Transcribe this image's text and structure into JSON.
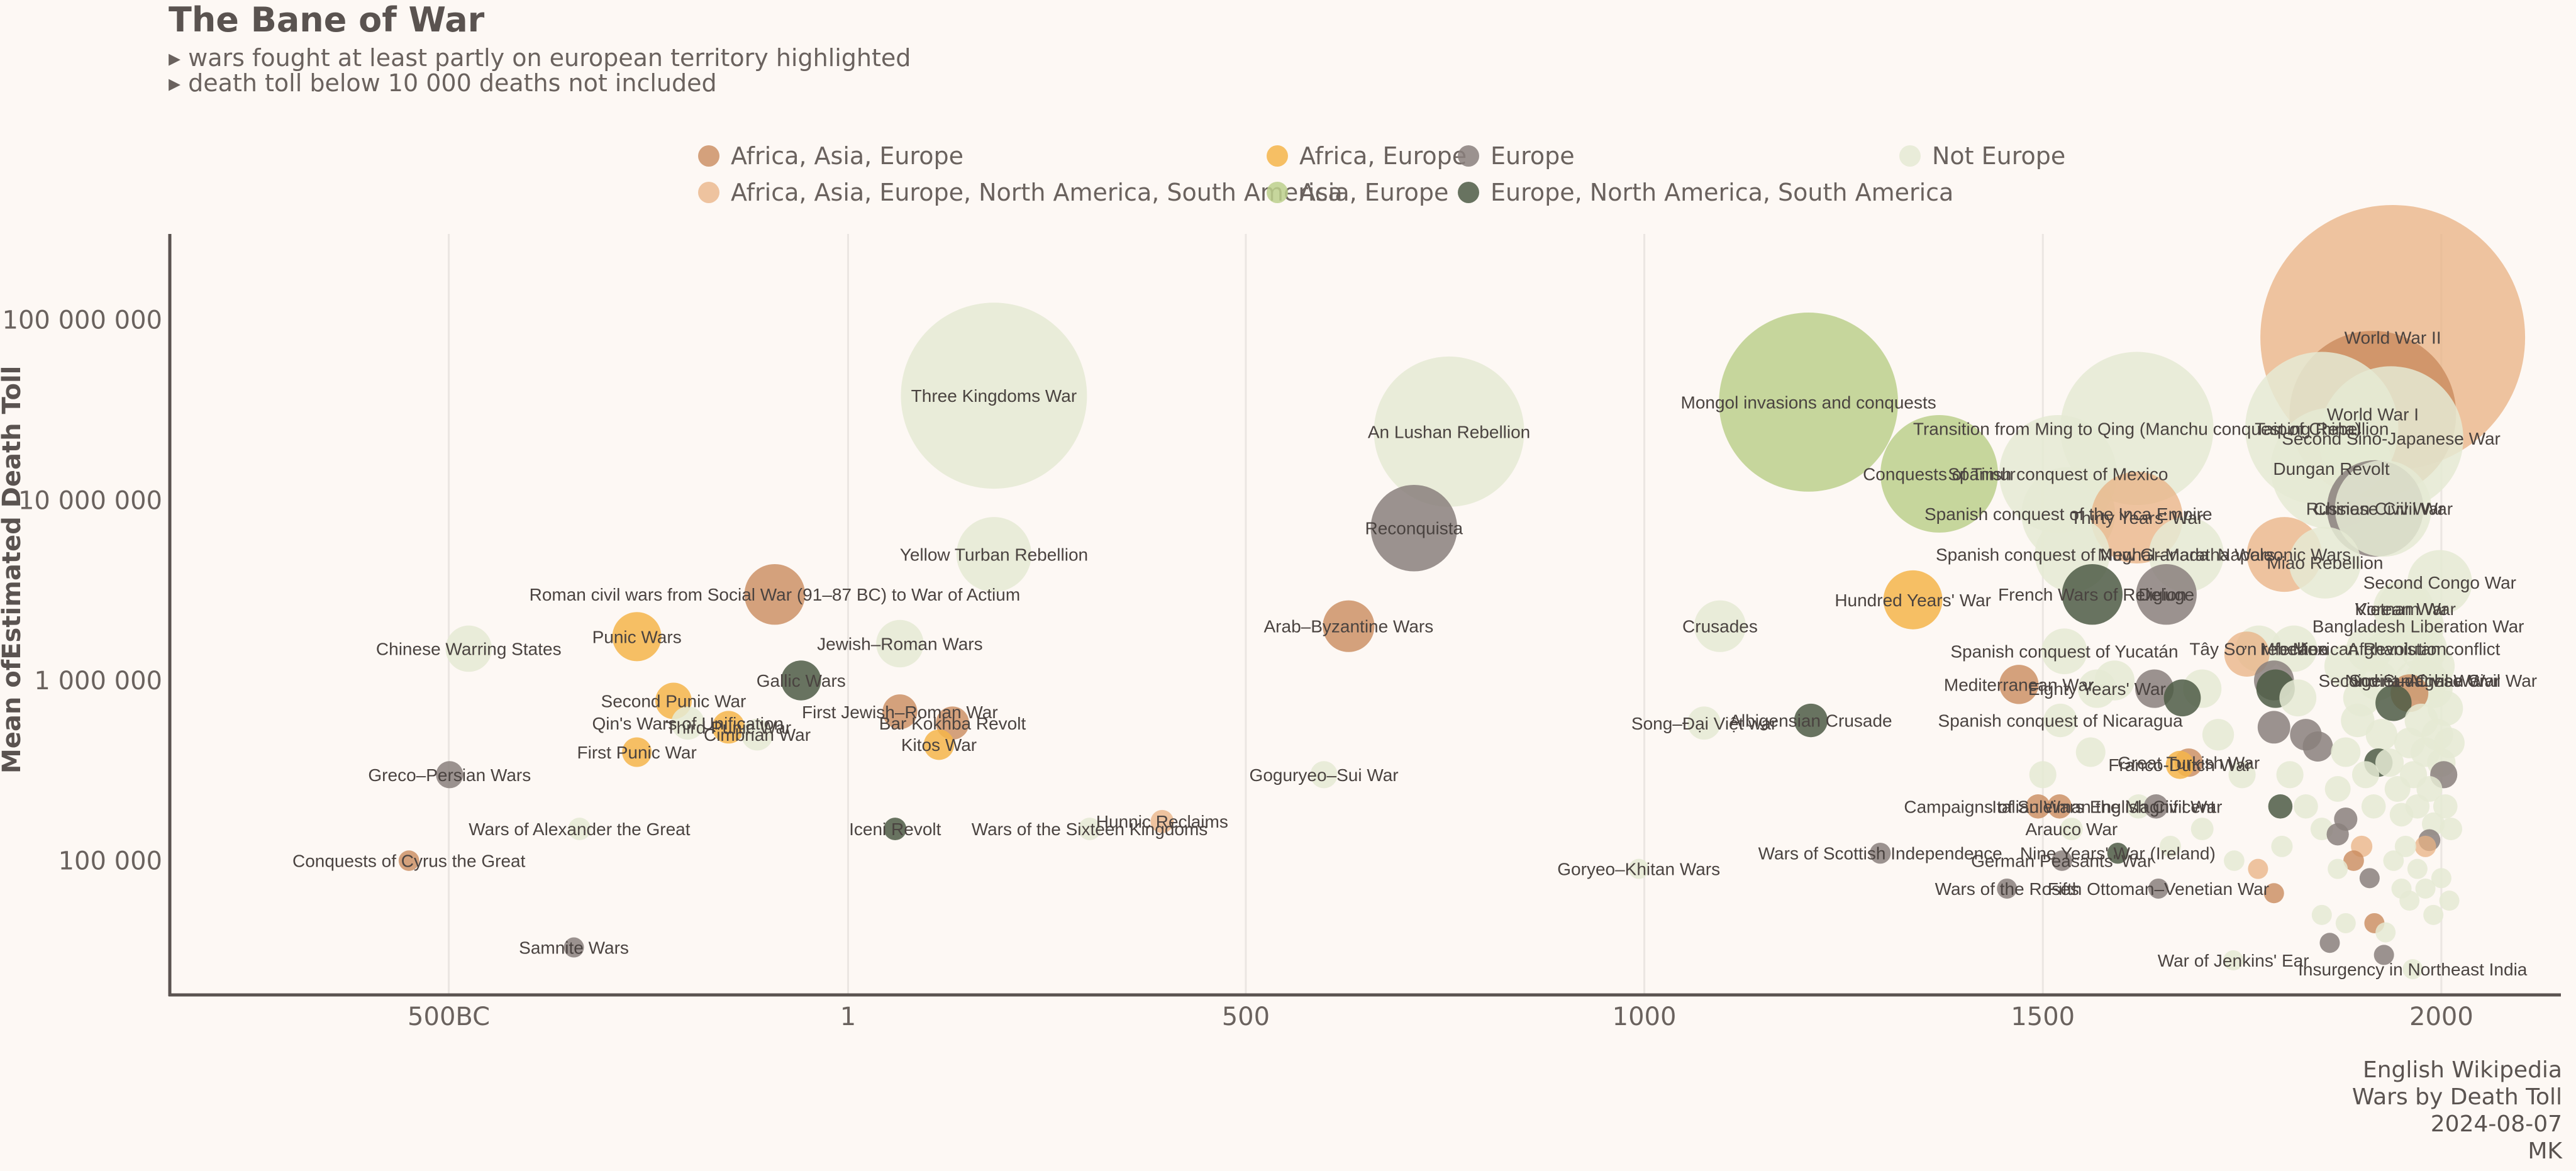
{
  "chart_data": {
    "type": "scatter",
    "title": "The Bane of War",
    "subtitle": [
      "▸ wars fought at least partly on european territory highlighted",
      "▸ death toll below 10 000 deaths not included"
    ],
    "ylabel": "Mean ofEstimated Death Toll",
    "xlabel": "",
    "x_scale": "linear",
    "y_scale": "log",
    "xlim": [
      -850,
      2150
    ],
    "ylim": [
      18000,
      300000000
    ],
    "x_ticks": [
      {
        "value": -500,
        "label": "500BC"
      },
      {
        "value": 1,
        "label": "1"
      },
      {
        "value": 500,
        "label": "500"
      },
      {
        "value": 1000,
        "label": "1000"
      },
      {
        "value": 1500,
        "label": "1500"
      },
      {
        "value": 2000,
        "label": "2000"
      }
    ],
    "y_ticks": [
      {
        "value": 100000,
        "label": "100 000"
      },
      {
        "value": 1000000,
        "label": "1 000 000"
      },
      {
        "value": 10000000,
        "label": "10 000 000"
      },
      {
        "value": 100000000,
        "label": "100 000 000"
      }
    ],
    "grid": "vertical",
    "legend_position": "top",
    "legend": [
      {
        "name": "Africa, Asia, Europe",
        "color": "#c98b5e",
        "alpha": 0.8
      },
      {
        "name": "Africa, Asia, Europe, North America, South America",
        "color": "#e8b283",
        "alpha": 0.75
      },
      {
        "name": "Africa, Europe",
        "color": "#f5b54a",
        "alpha": 0.85
      },
      {
        "name": "Asia, Europe",
        "color": "#bcd08c",
        "alpha": 0.85
      },
      {
        "name": "Europe",
        "color": "#8a807c",
        "alpha": 0.85
      },
      {
        "name": "Europe, North America, South America",
        "color": "#4e5c45",
        "alpha": 0.85
      },
      {
        "name": "Not Europe",
        "color": "#e5ead3",
        "alpha": 0.85
      }
    ],
    "points": [
      {
        "label": "Conquests of Cyrus the Great",
        "x": -550,
        "y": 100000,
        "group": 0
      },
      {
        "label": "Greco–Persian Wars",
        "x": -499,
        "y": 300000,
        "group": 4
      },
      {
        "label": "Chinese Warring States",
        "x": -475,
        "y": 1500000,
        "group": 6
      },
      {
        "label": "Samnite Wars",
        "x": -343,
        "y": 33000,
        "group": 4
      },
      {
        "label": "Wars of Alexander the Great",
        "x": -336,
        "y": 150000,
        "group": 6
      },
      {
        "label": "Punic Wars",
        "x": -264,
        "y": 1750000,
        "group": 2
      },
      {
        "label": "First Punic War",
        "x": -264,
        "y": 400000,
        "group": 2
      },
      {
        "label": "Second Punic War",
        "x": -218,
        "y": 770000,
        "group": 2
      },
      {
        "label": "Qin's Wars of Unification",
        "x": -200,
        "y": 580000,
        "group": 6
      },
      {
        "label": "Third Punic War",
        "x": -149,
        "y": 550000,
        "group": 2
      },
      {
        "label": "Roman civil wars from Social War (91–87 BC) to War of Actium",
        "x": -91,
        "y": 3000000,
        "group": 0
      },
      {
        "label": "Gallic Wars",
        "x": -58,
        "y": 1000000,
        "group": 5
      },
      {
        "label": "Cimbrian War",
        "x": -113,
        "y": 500000,
        "group": 6
      },
      {
        "label": "Jewish–Roman Wars",
        "x": 66,
        "y": 1600000,
        "group": 6
      },
      {
        "label": "First Jewish–Roman War",
        "x": 66,
        "y": 670000,
        "group": 0
      },
      {
        "label": "Iceni Revolt",
        "x": 60,
        "y": 150000,
        "group": 5
      },
      {
        "label": "Kitos War",
        "x": 115,
        "y": 440000,
        "group": 2
      },
      {
        "label": "Bar Kokhba Revolt",
        "x": 132,
        "y": 580000,
        "group": 0
      },
      {
        "label": "Three Kingdoms War",
        "x": 184,
        "y": 38000000,
        "group": 6
      },
      {
        "label": "Yellow Turban Rebellion",
        "x": 184,
        "y": 5000000,
        "group": 6
      },
      {
        "label": "Wars of the Sixteen Kingdoms",
        "x": 304,
        "y": 150000,
        "group": 6
      },
      {
        "label": "Hunnic Reclaims",
        "x": 395,
        "y": 165000,
        "group": 1
      },
      {
        "label": "Goguryeo–Sui War",
        "x": 598,
        "y": 300000,
        "group": 6
      },
      {
        "label": "Arab–Byzantine Wars",
        "x": 629,
        "y": 2000000,
        "group": 0
      },
      {
        "label": "Reconquista",
        "x": 711,
        "y": 7000000,
        "group": 4
      },
      {
        "label": "An Lushan Rebellion",
        "x": 755,
        "y": 24000000,
        "group": 6
      },
      {
        "label": "Goryeo–Khitan Wars",
        "x": 993,
        "y": 90000,
        "group": 6
      },
      {
        "label": "Song–Đại Việt war",
        "x": 1075,
        "y": 580000,
        "group": 6
      },
      {
        "label": "Crusades",
        "x": 1095,
        "y": 2000000,
        "group": 6
      },
      {
        "label": "Mongol invasions and conquests",
        "x": 1206,
        "y": 35000000,
        "group": 3
      },
      {
        "label": "Albigensian Crusade",
        "x": 1209,
        "y": 600000,
        "group": 5
      },
      {
        "label": "Wars of Scottish Independence",
        "x": 1296,
        "y": 110000,
        "group": 4
      },
      {
        "label": "Hundred Years' War",
        "x": 1337,
        "y": 2800000,
        "group": 2
      },
      {
        "label": "Conquests of Timur",
        "x": 1370,
        "y": 14000000,
        "group": 3
      },
      {
        "label": "Wars of the Roses",
        "x": 1455,
        "y": 70000,
        "group": 4
      },
      {
        "label": "Mediterranean War",
        "x": 1470,
        "y": 950000,
        "group": 0
      },
      {
        "label": "Italian Wars",
        "x": 1494,
        "y": 200000,
        "group": 0
      },
      {
        "label": "Campaigns of Suleiman the Magnificent",
        "x": 1521,
        "y": 200000,
        "group": 0
      },
      {
        "label": "German Peasants' War",
        "x": 1524,
        "y": 100000,
        "group": 4
      },
      {
        "label": "Spanish conquest of the Inca Empire",
        "x": 1532,
        "y": 8400000,
        "group": 6
      },
      {
        "label": "Spanish conquest of Mexico",
        "x": 1519,
        "y": 14000000,
        "group": 6
      },
      {
        "label": "Spanish conquest of New Granada",
        "x": 1537,
        "y": 5000000,
        "group": 6
      },
      {
        "label": "Spanish conquest of Yucatán",
        "x": 1527,
        "y": 1450000,
        "group": 6
      },
      {
        "label": "Spanish conquest of Nicaragua",
        "x": 1522,
        "y": 600000,
        "group": 6
      },
      {
        "label": "Arauco War",
        "x": 1536,
        "y": 150000,
        "group": 6
      },
      {
        "label": "French Wars of Religion",
        "x": 1562,
        "y": 3000000,
        "group": 5
      },
      {
        "label": "Mughal–Maratha Wars",
        "x": 1680,
        "y": 5000000,
        "group": 6
      },
      {
        "label": "Eighty Years' War",
        "x": 1568,
        "y": 900000,
        "group": 6
      },
      {
        "label": "Transition from Ming to Qing (Manchu conquest of China)",
        "x": 1618,
        "y": 25000000,
        "group": 6
      },
      {
        "label": "Thirty Years' War",
        "x": 1618,
        "y": 8000000,
        "group": 1
      },
      {
        "label": "Deluge",
        "x": 1655,
        "y": 3000000,
        "group": 4
      },
      {
        "label": "Great Turkish War",
        "x": 1683,
        "y": 350000,
        "group": 0
      },
      {
        "label": "English Civil War",
        "x": 1642,
        "y": 200000,
        "group": 4
      },
      {
        "label": "Nine Years' War (Ireland)",
        "x": 1594,
        "y": 110000,
        "group": 5
      },
      {
        "label": "Fifth Ottoman–Venetian War",
        "x": 1645,
        "y": 70000,
        "group": 4
      },
      {
        "label": "War of Jenkins' Ear",
        "x": 1739,
        "y": 28000,
        "group": 6
      },
      {
        "label": "Franco-Dutch War",
        "x": 1672,
        "y": 340000,
        "group": 2
      },
      {
        "label": "Napoleonic Wars",
        "x": 1803,
        "y": 5000000,
        "group": 1
      },
      {
        "label": "Miao Rebellion",
        "x": 1854,
        "y": 4500000,
        "group": 6
      },
      {
        "label": "Mfecane",
        "x": 1815,
        "y": 1500000,
        "group": 6
      },
      {
        "label": "Taiping Rebellion",
        "x": 1850,
        "y": 25000000,
        "group": 6
      },
      {
        "label": "Dungan Revolt",
        "x": 1862,
        "y": 15000000,
        "group": 6
      },
      {
        "label": "Tây Sơn rebellion",
        "x": 1771,
        "y": 1500000,
        "group": 6
      },
      {
        "label": "Mexican Revolution",
        "x": 1910,
        "y": 1500000,
        "group": 6
      },
      {
        "label": "World War I",
        "x": 1914,
        "y": 30000000,
        "group": 0
      },
      {
        "label": "Russian Civil War",
        "x": 1917,
        "y": 9000000,
        "group": 4
      },
      {
        "label": "Chinese Civil War",
        "x": 1927,
        "y": 9000000,
        "group": 6
      },
      {
        "label": "Second Sino-Japanese War",
        "x": 1937,
        "y": 22000000,
        "group": 6
      },
      {
        "label": "World War II",
        "x": 1939,
        "y": 80000000,
        "group": 1
      },
      {
        "label": "Korean War",
        "x": 1950,
        "y": 2500000,
        "group": 6
      },
      {
        "label": "Vietnam War",
        "x": 1955,
        "y": 2500000,
        "group": 6
      },
      {
        "label": "Nigerian Civil War",
        "x": 1967,
        "y": 1000000,
        "group": 6
      },
      {
        "label": "Bangladesh Liberation War",
        "x": 1971,
        "y": 2000000,
        "group": 6
      },
      {
        "label": "Second Congo War",
        "x": 1998,
        "y": 3500000,
        "group": 6
      },
      {
        "label": "Afghanistan conflict",
        "x": 1978,
        "y": 1500000,
        "group": 6
      },
      {
        "label": "Second Sudanese Civil War",
        "x": 1983,
        "y": 1000000,
        "group": 6
      },
      {
        "label": "Soviet–Afghan War",
        "x": 1979,
        "y": 1000000,
        "group": 6
      },
      {
        "label": "Insurgency in Northeast India",
        "x": 1964,
        "y": 25000,
        "group": 6
      }
    ],
    "points_unlabeled": [
      {
        "x": 1675,
        "y": 800000,
        "group": 5
      },
      {
        "x": 1640,
        "y": 900000,
        "group": 4
      },
      {
        "x": 1756,
        "y": 1400000,
        "group": 1
      },
      {
        "x": 1792,
        "y": 900000,
        "group": 5
      },
      {
        "x": 1790,
        "y": 1000000,
        "group": 4
      },
      {
        "x": 1798,
        "y": 200000,
        "group": 5
      },
      {
        "x": 1790,
        "y": 550000,
        "group": 4
      },
      {
        "x": 1830,
        "y": 500000,
        "group": 4
      },
      {
        "x": 1845,
        "y": 430000,
        "group": 4
      },
      {
        "x": 1870,
        "y": 140000,
        "group": 4
      },
      {
        "x": 1880,
        "y": 170000,
        "group": 4
      },
      {
        "x": 1900,
        "y": 120000,
        "group": 1
      },
      {
        "x": 1890,
        "y": 100000,
        "group": 0
      },
      {
        "x": 1910,
        "y": 80000,
        "group": 4
      },
      {
        "x": 1916,
        "y": 45000,
        "group": 0
      },
      {
        "x": 1928,
        "y": 30000,
        "group": 4
      },
      {
        "x": 1860,
        "y": 35000,
        "group": 4
      },
      {
        "x": 1921,
        "y": 350000,
        "group": 5
      },
      {
        "x": 1940,
        "y": 750000,
        "group": 5
      },
      {
        "x": 1990,
        "y": 900000,
        "group": 6
      },
      {
        "x": 2003,
        "y": 300000,
        "group": 4
      },
      {
        "x": 1985,
        "y": 130000,
        "group": 4
      },
      {
        "x": 1960,
        "y": 850000,
        "group": 0
      },
      {
        "x": 1790,
        "y": 66000,
        "group": 0
      },
      {
        "x": 1770,
        "y": 90000,
        "group": 1
      },
      {
        "x": 1980,
        "y": 120000,
        "group": 1
      },
      {
        "x": 1810,
        "y": 300000,
        "group": 6
      },
      {
        "x": 1830,
        "y": 200000,
        "group": 6
      },
      {
        "x": 1850,
        "y": 150000,
        "group": 6
      },
      {
        "x": 1870,
        "y": 250000,
        "group": 6
      },
      {
        "x": 1880,
        "y": 400000,
        "group": 6
      },
      {
        "x": 1895,
        "y": 600000,
        "group": 6
      },
      {
        "x": 1905,
        "y": 300000,
        "group": 6
      },
      {
        "x": 1915,
        "y": 200000,
        "group": 6
      },
      {
        "x": 1925,
        "y": 500000,
        "group": 6
      },
      {
        "x": 1935,
        "y": 350000,
        "group": 6
      },
      {
        "x": 1945,
        "y": 250000,
        "group": 6
      },
      {
        "x": 1950,
        "y": 180000,
        "group": 6
      },
      {
        "x": 1955,
        "y": 120000,
        "group": 6
      },
      {
        "x": 1960,
        "y": 450000,
        "group": 6
      },
      {
        "x": 1965,
        "y": 300000,
        "group": 6
      },
      {
        "x": 1970,
        "y": 200000,
        "group": 6
      },
      {
        "x": 1975,
        "y": 600000,
        "group": 6
      },
      {
        "x": 1980,
        "y": 400000,
        "group": 6
      },
      {
        "x": 1985,
        "y": 250000,
        "group": 6
      },
      {
        "x": 1990,
        "y": 160000,
        "group": 6
      },
      {
        "x": 1995,
        "y": 500000,
        "group": 6
      },
      {
        "x": 2000,
        "y": 350000,
        "group": 6
      },
      {
        "x": 2005,
        "y": 200000,
        "group": 6
      },
      {
        "x": 2010,
        "y": 450000,
        "group": 6
      },
      {
        "x": 2012,
        "y": 150000,
        "group": 6
      },
      {
        "x": 1940,
        "y": 100000,
        "group": 6
      },
      {
        "x": 1950,
        "y": 70000,
        "group": 6
      },
      {
        "x": 1960,
        "y": 60000,
        "group": 6
      },
      {
        "x": 1970,
        "y": 90000,
        "group": 6
      },
      {
        "x": 1980,
        "y": 70000,
        "group": 6
      },
      {
        "x": 1990,
        "y": 50000,
        "group": 6
      },
      {
        "x": 2000,
        "y": 80000,
        "group": 6
      },
      {
        "x": 2010,
        "y": 60000,
        "group": 6
      },
      {
        "x": 1930,
        "y": 40000,
        "group": 6
      },
      {
        "x": 1850,
        "y": 50000,
        "group": 6
      },
      {
        "x": 1880,
        "y": 45000,
        "group": 6
      },
      {
        "x": 1900,
        "y": 800000,
        "group": 6
      },
      {
        "x": 1920,
        "y": 1000000,
        "group": 6
      },
      {
        "x": 1880,
        "y": 1200000,
        "group": 6
      },
      {
        "x": 1820,
        "y": 800000,
        "group": 6
      },
      {
        "x": 1750,
        "y": 300000,
        "group": 6
      },
      {
        "x": 1720,
        "y": 500000,
        "group": 6
      },
      {
        "x": 1700,
        "y": 900000,
        "group": 6
      },
      {
        "x": 1590,
        "y": 1000000,
        "group": 6
      },
      {
        "x": 1560,
        "y": 400000,
        "group": 6
      },
      {
        "x": 1500,
        "y": 300000,
        "group": 6
      },
      {
        "x": 1620,
        "y": 200000,
        "group": 6
      },
      {
        "x": 1660,
        "y": 120000,
        "group": 6
      },
      {
        "x": 1700,
        "y": 150000,
        "group": 6
      },
      {
        "x": 1740,
        "y": 100000,
        "group": 6
      },
      {
        "x": 1800,
        "y": 120000,
        "group": 6
      },
      {
        "x": 1870,
        "y": 90000,
        "group": 6
      },
      {
        "x": 1960,
        "y": 1800000,
        "group": 6
      },
      {
        "x": 1990,
        "y": 1200000,
        "group": 6
      },
      {
        "x": 2005,
        "y": 700000,
        "group": 6
      },
      {
        "x": 1930,
        "y": 1400000,
        "group": 6
      }
    ]
  },
  "source": [
    "English Wikipedia",
    "Wars by Death Toll",
    "2024-08-07",
    "MK"
  ]
}
